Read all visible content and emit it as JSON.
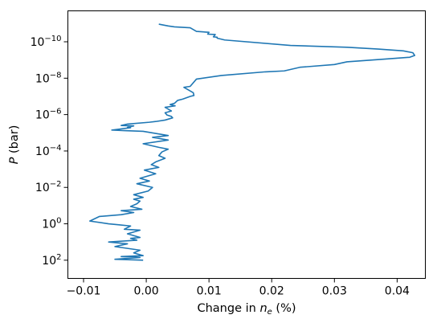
{
  "chart_data": {
    "type": "line",
    "title": "",
    "xlabel": {
      "prefix": "Change in ",
      "var": "n",
      "sub": "e",
      "suffix": " (%)"
    },
    "ylabel": {
      "var": "P",
      "suffix": " (bar)"
    },
    "xlim": [
      -0.0125,
      0.0445
    ],
    "ylim_log10": [
      3.0,
      -11.7
    ],
    "y_scale": "log",
    "y_inverted": true,
    "x_ticks": [
      -0.01,
      0.0,
      0.01,
      0.02,
      0.03,
      0.04
    ],
    "x_tick_labels": [
      "−0.01",
      "0.00",
      "0.01",
      "0.02",
      "0.03",
      "0.04"
    ],
    "y_ticks_log10": [
      -10,
      -8,
      -6,
      -4,
      -2,
      0,
      2
    ],
    "y_tick_labels": [
      {
        "base": "10",
        "exp": "−10"
      },
      {
        "base": "10",
        "exp": "−8"
      },
      {
        "base": "10",
        "exp": "−6"
      },
      {
        "base": "10",
        "exp": "−4"
      },
      {
        "base": "10",
        "exp": "−2"
      },
      {
        "base": "10",
        "exp": "0"
      },
      {
        "base": "10",
        "exp": "2"
      }
    ],
    "grid": false,
    "legend": "none",
    "series": [
      {
        "color": "#1f77b4",
        "x": [
          0.002,
          0.0035,
          0.0045,
          0.007,
          0.008,
          0.01,
          0.0098,
          0.011,
          0.0107,
          0.0113,
          0.0113,
          0.0125,
          0.023,
          0.032,
          0.037,
          0.041,
          0.0425,
          0.0428,
          0.042,
          0.038,
          0.032,
          0.03,
          0.0245,
          0.022,
          0.019,
          0.012,
          0.008,
          0.007,
          0.006,
          0.0075,
          0.0076,
          0.007,
          0.0058,
          0.005,
          0.0045,
          0.0038,
          0.0046,
          0.003,
          0.004,
          0.003,
          0.0033,
          0.004,
          0.0042,
          0.003,
          0.0015,
          0.0005,
          -0.003,
          -0.004,
          -0.002,
          -0.003,
          -0.0025,
          -0.0055,
          -0.0035,
          -0.0005,
          0.0035,
          0.001,
          0.0035,
          -0.0005,
          0.002,
          0.0035,
          0.0025,
          0.002,
          0.003,
          0.0015,
          0.0008,
          0.002,
          -0.0003,
          0.0015,
          -0.001,
          0.0005,
          -0.0015,
          0.001,
          0.0003,
          -0.002,
          -0.0005,
          -0.002,
          -0.001,
          -0.0015,
          -0.0025,
          -0.0007,
          -0.004,
          -0.002,
          -0.004,
          -0.0075,
          -0.009,
          -0.006,
          -0.0045,
          -0.0025,
          -0.0035,
          -0.001,
          -0.003,
          -0.001,
          -0.0025,
          -0.0015,
          -0.006,
          -0.003,
          -0.005,
          -0.002,
          -0.001,
          -0.002,
          -0.0005,
          -0.004,
          -0.001,
          -0.005,
          -0.0005
        ],
        "log10p": [
          -10.97,
          -10.87,
          -10.82,
          -10.77,
          -10.57,
          -10.52,
          -10.42,
          -10.4,
          -10.27,
          -10.25,
          -10.2,
          -10.1,
          -9.8,
          -9.7,
          -9.6,
          -9.5,
          -9.4,
          -9.25,
          -9.15,
          -9.05,
          -8.9,
          -8.75,
          -8.6,
          -8.4,
          -8.35,
          -8.15,
          -7.95,
          -7.55,
          -7.5,
          -7.2,
          -7.05,
          -7.0,
          -6.85,
          -6.78,
          -6.62,
          -6.55,
          -6.48,
          -6.4,
          -6.2,
          -6.1,
          -5.98,
          -5.9,
          -5.82,
          -5.7,
          -5.62,
          -5.58,
          -5.48,
          -5.4,
          -5.38,
          -5.3,
          -5.28,
          -5.15,
          -5.12,
          -5.08,
          -4.85,
          -4.75,
          -4.6,
          -4.4,
          -4.2,
          -4.1,
          -3.95,
          -3.75,
          -3.6,
          -3.4,
          -3.25,
          -3.1,
          -2.95,
          -2.75,
          -2.5,
          -2.35,
          -2.2,
          -2.0,
          -1.8,
          -1.6,
          -1.45,
          -1.35,
          -1.25,
          -1.1,
          -0.95,
          -0.8,
          -0.72,
          -0.62,
          -0.5,
          -0.4,
          -0.15,
          0.0,
          0.05,
          0.12,
          0.3,
          0.35,
          0.55,
          0.75,
          0.8,
          0.9,
          1.0,
          1.1,
          1.25,
          1.4,
          1.45,
          1.6,
          1.75,
          1.8,
          1.85,
          1.95,
          2.0
        ]
      }
    ]
  }
}
